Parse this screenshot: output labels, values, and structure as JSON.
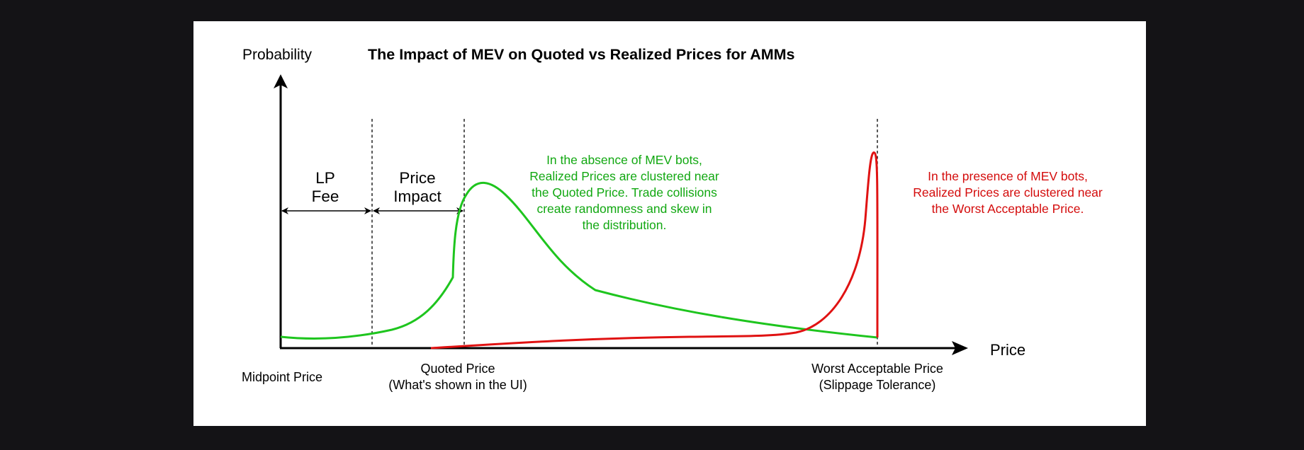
{
  "diagram": {
    "title": "The Impact of MEV on Quoted vs Realized Prices for AMMs",
    "y_axis_label": "Probability",
    "x_axis_label": "Price",
    "markers": {
      "midpoint": "Midpoint Price",
      "quoted_line1": "Quoted Price",
      "quoted_line2": "(What's shown in the UI)",
      "worst_line1": "Worst Acceptable Price",
      "worst_line2": "(Slippage Tolerance)"
    },
    "intervals": {
      "lp_fee_line1": "LP",
      "lp_fee_line2": "Fee",
      "price_impact_line1": "Price",
      "price_impact_line2": "Impact"
    },
    "annotations": {
      "no_mev": [
        "In the absence of MEV bots,",
        "Realized Prices are clustered near",
        "the Quoted Price. Trade collisions",
        "create randomness and skew in",
        "the distribution."
      ],
      "with_mev": [
        "In the presence of MEV bots,",
        "Realized Prices are clustered near",
        "the Worst Acceptable Price."
      ]
    },
    "colors": {
      "no_mev_curve": "#1ec51e",
      "with_mev_curve": "#e01212",
      "no_mev_text": "#12a812",
      "with_mev_text": "#d40c0c",
      "axes": "#000000",
      "background": "#ffffff",
      "page_background": "#141316"
    }
  }
}
